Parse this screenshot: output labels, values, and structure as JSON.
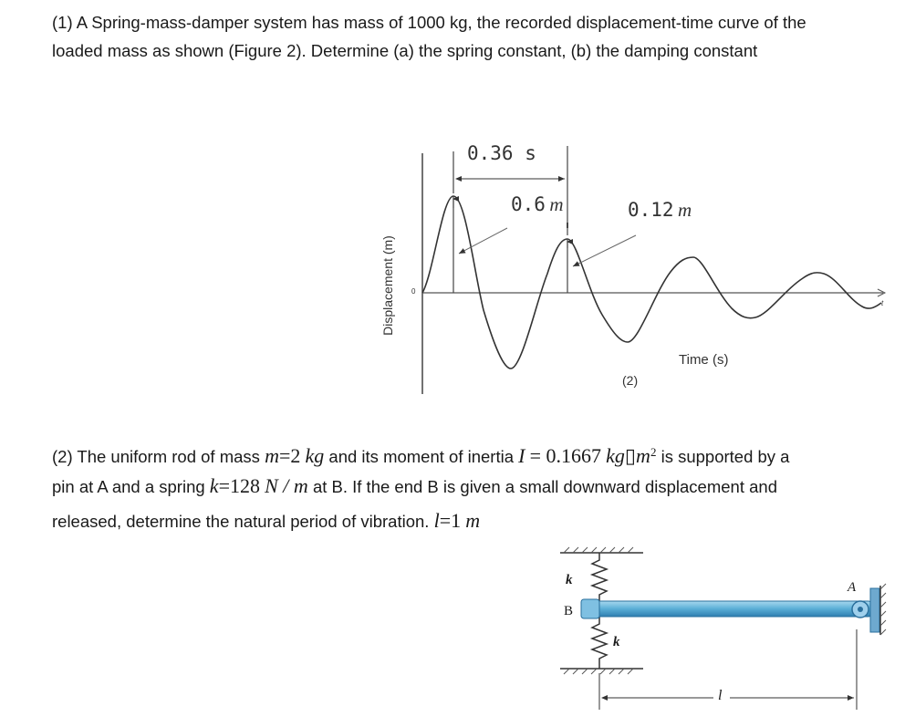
{
  "problem1": {
    "line1": "(1) A Spring-mass-damper system has mass of 1000 kg, the recorded displacement-time curve of the",
    "line2": "loaded mass as shown (Figure 2). Determine (a) the spring constant, (b) the damping constant"
  },
  "figure2": {
    "period_label": "0.36 s",
    "amp1_label": "0.6",
    "amp1_unit": "m",
    "amp2_label": "0.12",
    "amp2_unit": "m",
    "y_axis_label": "Displacement (m)",
    "origin_label": "0",
    "t_label": "t",
    "x_axis_label": "Time (s)",
    "caption": "(2)"
  },
  "problem2": {
    "l1_a": "(2) The uniform rod of mass",
    "l1_m_var": "m",
    "l1_m_eq": "=2",
    "l1_m_unit": "kg",
    "l1_b": "and its moment of inertia",
    "l1_I_var": "I",
    "l1_I_val": "= 0.1667",
    "l1_I_unit": "kg▯m",
    "l1_I_exp": "2",
    "l1_c": "is supported by a",
    "l2_a": "pin at A  and a spring",
    "l2_k_var": "k",
    "l2_k_eq": "=128",
    "l2_k_unit": "N / m",
    "l2_b": "at B. If the end B is given a small downward displacement and",
    "l3_a": "released, determine the natural period of vibration.",
    "l3_l_var": "l",
    "l3_l_eq": "=1",
    "l3_l_unit": "m"
  },
  "rod_figure": {
    "k_top": "k",
    "k_bottom": "k",
    "B": "B",
    "A": "A",
    "l": "l"
  },
  "colors": {
    "rod_top": "#a8d8ef",
    "rod_mid": "#5aaed6",
    "rod_bottom": "#2f7fb0"
  }
}
